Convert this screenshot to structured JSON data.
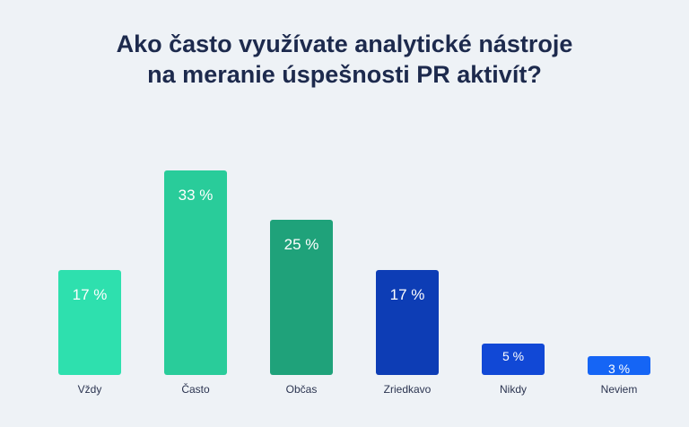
{
  "title_line1": "Ako často využívate analytické nástroje",
  "title_line2": "na meranie úspešnosti PR aktivít?",
  "chart_data": {
    "type": "bar",
    "title": "Ako často využívate analytické nástroje na meranie úspešnosti PR aktivít?",
    "categories": [
      "Vždy",
      "Často",
      "Občas",
      "Zriedkavo",
      "Nikdy",
      "Neviem"
    ],
    "values": [
      17,
      33,
      25,
      17,
      5,
      3
    ],
    "value_labels": [
      "17 %",
      "33 %",
      "25 %",
      "17 %",
      "5 %",
      "3 %"
    ],
    "colors": [
      "#2ee0ae",
      "#29cc9a",
      "#1fa27a",
      "#0d3db5",
      "#1148d6",
      "#1565f5"
    ],
    "unit": "%",
    "grid": false,
    "legend": "none"
  }
}
